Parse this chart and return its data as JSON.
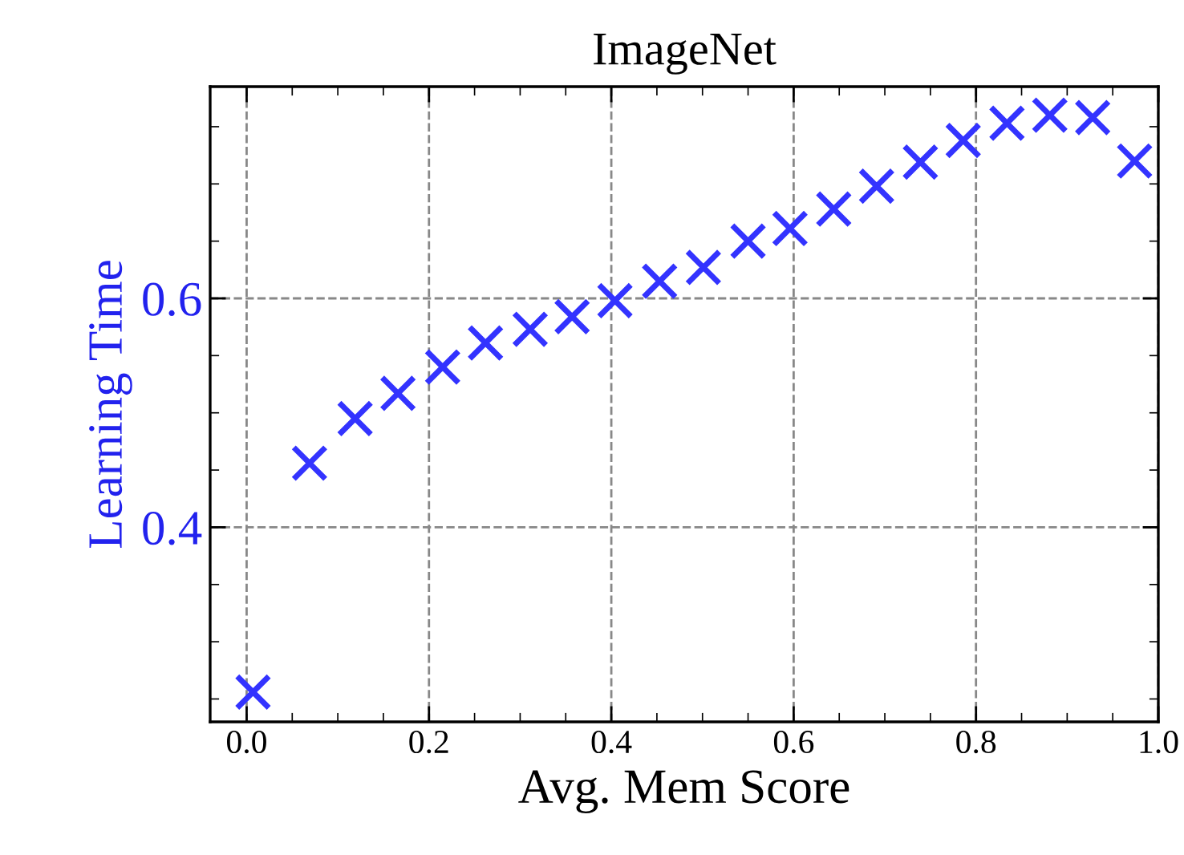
{
  "chart_data": {
    "type": "scatter",
    "title": "ImageNet",
    "xlabel": "Avg. Mem Score",
    "ylabel": "Learning Time",
    "x": [
      0.007,
      0.069,
      0.119,
      0.166,
      0.215,
      0.262,
      0.311,
      0.357,
      0.404,
      0.453,
      0.501,
      0.55,
      0.596,
      0.644,
      0.691,
      0.739,
      0.786,
      0.834,
      0.881,
      0.928,
      0.974
    ],
    "series": [
      {
        "color": "#3333ff",
        "values": [
          0.256,
          0.456,
          0.495,
          0.517,
          0.54,
          0.561,
          0.573,
          0.584,
          0.598,
          0.615,
          0.627,
          0.65,
          0.661,
          0.678,
          0.698,
          0.719,
          0.738,
          0.753,
          0.76,
          0.758,
          0.72
        ]
      }
    ],
    "xlim": [
      -0.04,
      1.0
    ],
    "ylim": [
      0.23,
      0.785
    ],
    "xticks": [
      {
        "value": 0,
        "label": "0.0"
      },
      0.2,
      0.4,
      0.6,
      0.8,
      {
        "value": 1,
        "label": "1.0"
      }
    ],
    "yticks": [
      0.4,
      0.6
    ],
    "grid": true,
    "marker": "cross"
  }
}
